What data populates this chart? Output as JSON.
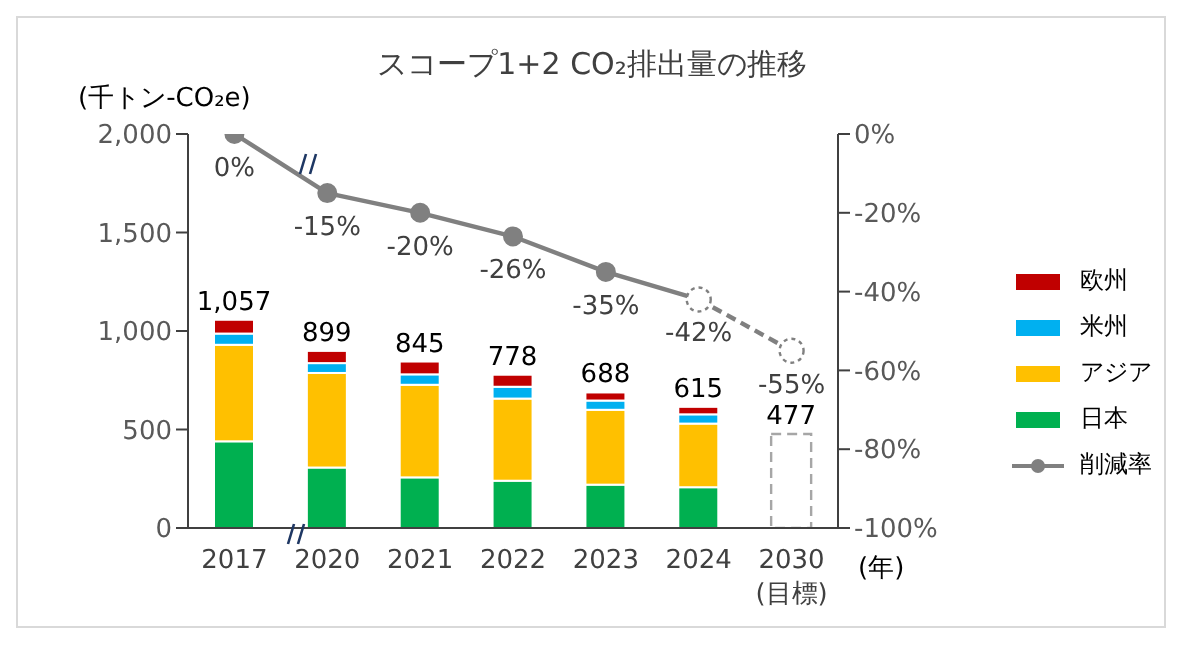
{
  "chart_data": {
    "type": "bar",
    "title": "スコープ1+2 CO₂排出量の推移",
    "ylabel": "(千トン-CO₂e)",
    "xlabel": "(年)",
    "categories": [
      "2017",
      "2020",
      "2021",
      "2022",
      "2023",
      "2024",
      "2030\n(目標)"
    ],
    "stacked": true,
    "series": [
      {
        "name": "日本",
        "color": "#00b050",
        "values": [
          440,
          307,
          257,
          240,
          220,
          207,
          null
        ]
      },
      {
        "name": "アジア",
        "color": "#ffc000",
        "values": [
          490,
          480,
          470,
          417,
          380,
          323,
          null
        ]
      },
      {
        "name": "米州",
        "color": "#00b0f0",
        "values": [
          57,
          50,
          53,
          60,
          47,
          47,
          null
        ]
      },
      {
        "name": "欧州",
        "color": "#c00000",
        "values": [
          70,
          62,
          65,
          61,
          41,
          38,
          null
        ]
      },
      {
        "color": "#a6a6a6",
        "line_style": "dashed",
        "values": [
          null,
          null,
          null,
          null,
          null,
          null,
          477
        ]
      },
      {
        "name": "削減率",
        "type": "line",
        "axis": "y2",
        "color": "#808080",
        "values": [
          0,
          -15,
          -20,
          -26,
          -35,
          -42,
          null
        ],
        "value_labels": [
          "0%",
          "-15%",
          "-20%",
          "-26%",
          "-35%",
          "-42%",
          null
        ]
      },
      {
        "type": "line",
        "axis": "y2",
        "color": "#808080",
        "line_style": "dashed",
        "values": [
          null,
          null,
          null,
          null,
          null,
          -42,
          -55
        ],
        "value_labels": [
          null,
          null,
          null,
          null,
          null,
          null,
          "-55%"
        ]
      }
    ],
    "totals": [
      "1,057",
      "899",
      "845",
      "778",
      "688",
      "615",
      "477"
    ],
    "ylim": [
      0,
      2000
    ],
    "yticks": [
      0,
      500,
      {
        "value": 1000,
        "label": "1,000"
      },
      {
        "value": 1500,
        "label": "1,500"
      },
      {
        "value": 2000,
        "label": "2,000"
      }
    ],
    "y2lim": [
      -100,
      0
    ],
    "y2ticks": [
      {
        "value": 0,
        "label": "0%"
      },
      {
        "value": -20,
        "label": "-20%"
      },
      {
        "value": -40,
        "label": "-40%"
      },
      {
        "value": -60,
        "label": "-60%"
      },
      {
        "value": -80,
        "label": "-80%"
      },
      {
        "value": -100,
        "label": "-100%"
      }
    ],
    "marker": "circle",
    "legend": "right"
  }
}
